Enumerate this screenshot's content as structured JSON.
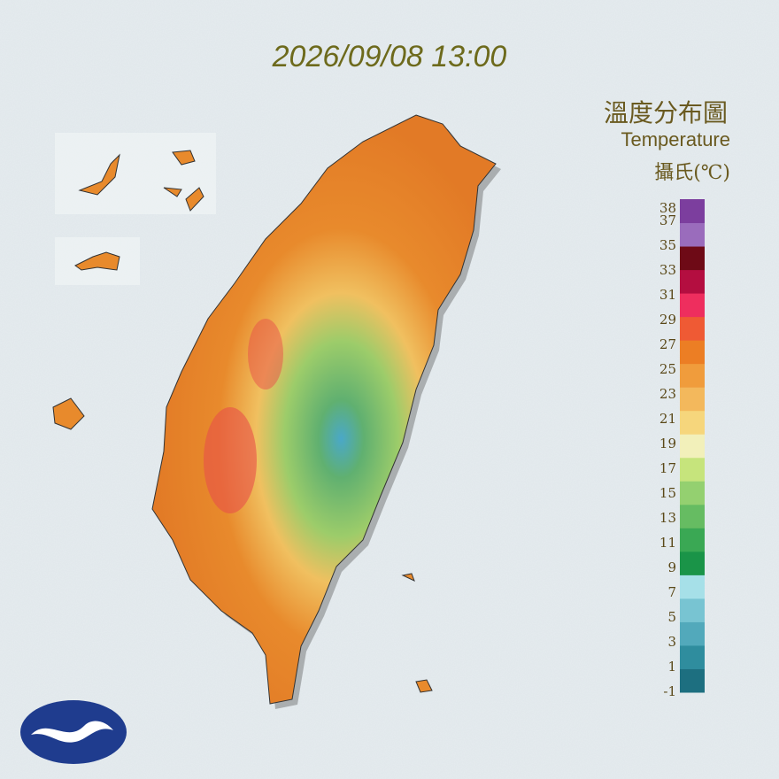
{
  "timestamp": "2026/09/08 13:00",
  "legend": {
    "title": "溫度分布圖",
    "subtitle": "Temperature",
    "unit": "攝氏(℃)",
    "ticks": [
      38,
      37,
      35,
      33,
      31,
      29,
      27,
      25,
      23,
      21,
      19,
      17,
      15,
      13,
      11,
      9,
      7,
      5,
      3,
      1,
      -1
    ],
    "colors": [
      "#1d6f80",
      "#2f8d9e",
      "#52a9bb",
      "#78c4d2",
      "#a6e0e8",
      "#1a9448",
      "#3aa854",
      "#66bc62",
      "#94d070",
      "#c6e47c",
      "#f2f0ba",
      "#f6d67c",
      "#f3b85c",
      "#f09c3c",
      "#ec7e24",
      "#ef5a34",
      "#ee2e5e",
      "#b40e40",
      "#6e0a16",
      "#9a6cbc",
      "#7c3e9e"
    ]
  }
}
